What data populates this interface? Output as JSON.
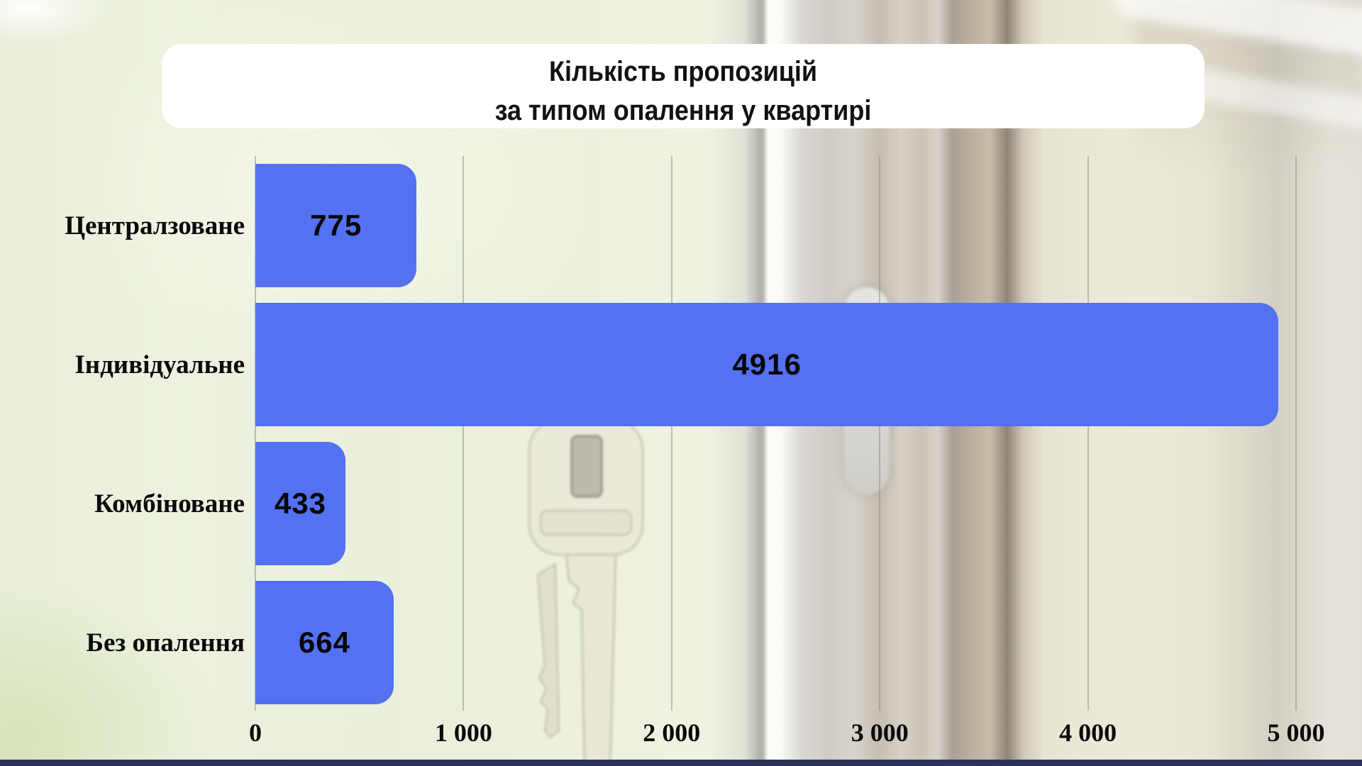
{
  "title": {
    "line1": "Кількість пропозицій",
    "line2": "за типом опалення у квартирі"
  },
  "chart_data": {
    "type": "bar",
    "orientation": "horizontal",
    "title": "Кількість пропозицій за типом опалення у квартирі",
    "categories": [
      "Централзоване",
      "Індивідуальне",
      "Комбіноване",
      "Без опалення"
    ],
    "values": [
      775,
      4916,
      433,
      664
    ],
    "xlim": [
      0,
      5000
    ],
    "x_ticks": [
      0,
      1000,
      2000,
      3000,
      4000,
      5000
    ],
    "x_tick_labels": [
      "0",
      "1 000",
      "2 000",
      "3 000",
      "4 000",
      "5 000"
    ],
    "grid": true,
    "legend": false,
    "value_labels_inside_bars": true
  },
  "colors": {
    "bar_color": "#5471F2",
    "grid_color": "#8f958a",
    "label_color": "#0b0b0b",
    "value_color": "#060606",
    "tick_color": "#0b0b0b",
    "strip_color": "#2c3158",
    "title_bg": "#ffffff",
    "title_color": "#121212"
  }
}
